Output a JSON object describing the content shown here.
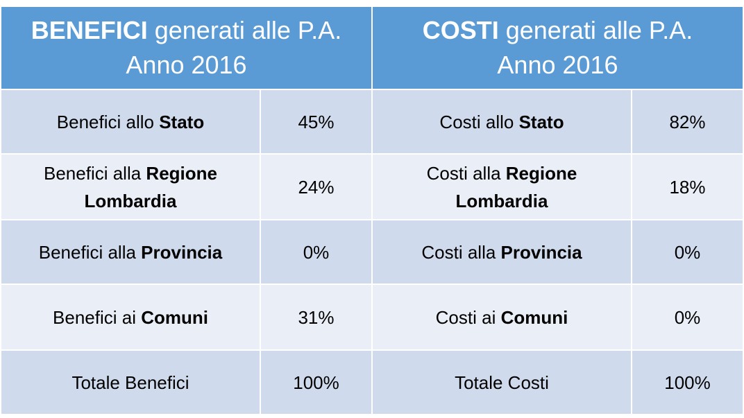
{
  "colors": {
    "header_bg": "#5b9bd5",
    "row_odd_bg": "#cfdbed",
    "row_even_bg": "#e9eef7"
  },
  "benefici": {
    "header_bold": "BENEFICI",
    "header_rest": " generati alle P.A.",
    "header_line2": "Anno 2016",
    "rows": [
      {
        "label_pre": "Benefici allo ",
        "label_bold": "Stato",
        "value": "45%"
      },
      {
        "label_pre": "Benefici alla ",
        "label_bold": "Regione Lombardia",
        "value": "24%"
      },
      {
        "label_pre": "Benefici alla ",
        "label_bold": "Provincia",
        "value": "0%"
      },
      {
        "label_pre": "Benefici ai ",
        "label_bold": "Comuni",
        "value": "31%"
      }
    ],
    "total_label": "Totale Benefici",
    "total_value": "100%"
  },
  "costi": {
    "header_bold": "COSTI",
    "header_rest": " generati alle P.A.",
    "header_line2": "Anno 2016",
    "rows": [
      {
        "label_pre": "Costi allo ",
        "label_bold": "Stato",
        "value": "82%"
      },
      {
        "label_pre": "Costi alla ",
        "label_bold": "Regione Lombardia",
        "value": "18%"
      },
      {
        "label_pre": "Costi alla ",
        "label_bold": "Provincia",
        "value": "0%"
      },
      {
        "label_pre": "Costi ai ",
        "label_bold": "Comuni",
        "value": "0%"
      }
    ],
    "total_label": "Totale Costi",
    "total_value": "100%"
  }
}
